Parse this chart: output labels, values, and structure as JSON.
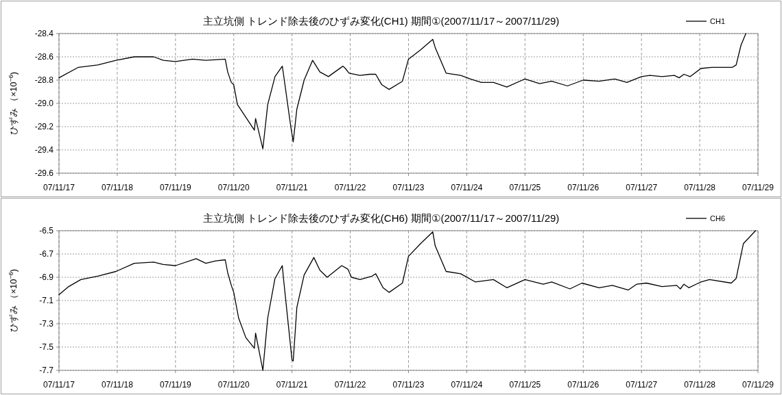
{
  "chart_data": [
    {
      "type": "line",
      "title": "主立坑側  トレンド除去後のひずみ変化(CH1)  期間①(2007/11/17～2007/11/29)",
      "ylabel": "ひずみ （×10$^{−6}$)",
      "legend": "top right",
      "grid": true,
      "xlim": [
        "2007-11-17",
        "2007-11-29"
      ],
      "xticks": [
        {
          "value": "2007-11-17",
          "label": "07/11/17"
        },
        {
          "value": "2007-11-18",
          "label": "07/11/18"
        },
        {
          "value": "2007-11-19",
          "label": "07/11/19"
        },
        {
          "value": "2007-11-20",
          "label": "07/11/20"
        },
        {
          "value": "2007-11-21",
          "label": "07/11/21"
        },
        {
          "value": "2007-11-22",
          "label": "07/11/22"
        },
        {
          "value": "2007-11-23",
          "label": "07/11/23"
        },
        {
          "value": "2007-11-24",
          "label": "07/11/24"
        },
        {
          "value": "2007-11-25",
          "label": "07/11/25"
        },
        {
          "value": "2007-11-26",
          "label": "07/11/26"
        },
        {
          "value": "2007-11-27",
          "label": "07/11/27"
        },
        {
          "value": "2007-11-28",
          "label": "07/11/28"
        },
        {
          "value": "2007-11-29",
          "label": "07/11/29"
        }
      ],
      "ylim": [
        -29.6,
        -28.4
      ],
      "yticks": [
        -29.6,
        -29.4,
        -29.2,
        {
          "value": -29,
          "label": "-29.0"
        },
        -28.8,
        -28.6,
        -28.4
      ],
      "series": [
        {
          "name": "CH1",
          "color": "#000000",
          "x": [
            "2007-11-17T00:00",
            "2007-11-17T08:00",
            "2007-11-17T16:00",
            "2007-11-17T23:30",
            "2007-11-18T07:00",
            "2007-11-18T15:00",
            "2007-11-18T19:00",
            "2007-11-19T00:00",
            "2007-11-19T07:00",
            "2007-11-19T12:30",
            "2007-11-19T20:30",
            "2007-11-19T21:30",
            "2007-11-19T23:00",
            "2007-11-20T00:00",
            "2007-11-20T01:30",
            "2007-11-20T05:00",
            "2007-11-20T08:30",
            "2007-11-20T09:00",
            "2007-11-20T12:00",
            "2007-11-20T14:00",
            "2007-11-20T17:00",
            "2007-11-20T20:00",
            "2007-11-20T20:30",
            "2007-11-20T23:30",
            "2007-11-21T00:30",
            "2007-11-21T02:00",
            "2007-11-21T05:00",
            "2007-11-21T08:30",
            "2007-11-21T11:30",
            "2007-11-21T15:00",
            "2007-11-21T21:00",
            "2007-11-21T22:00",
            "2007-11-21T23:30",
            "2007-11-22T04:00",
            "2007-11-22T08:00",
            "2007-11-22T10:30",
            "2007-11-22T13:00",
            "2007-11-22T16:00",
            "2007-11-22T21:30",
            "2007-11-23T00:00",
            "2007-11-23T05:00",
            "2007-11-23T10:00",
            "2007-11-23T11:00",
            "2007-11-23T15:30",
            "2007-11-23T21:30",
            "2007-11-24T01:30",
            "2007-11-24T06:00",
            "2007-11-24T11:00",
            "2007-11-24T16:30",
            "2007-11-25T00:00",
            "2007-11-25T06:00",
            "2007-11-25T11:00",
            "2007-11-25T17:30",
            "2007-11-26T00:00",
            "2007-11-26T06:30",
            "2007-11-26T13:00",
            "2007-11-26T18:00",
            "2007-11-27T00:00",
            "2007-11-27T03:30",
            "2007-11-27T08:30",
            "2007-11-27T13:30",
            "2007-11-27T15:30",
            "2007-11-27T17:30",
            "2007-11-27T20:00",
            "2007-11-28T00:30",
            "2007-11-28T05:00",
            "2007-11-28T13:30",
            "2007-11-28T15:00",
            "2007-11-28T17:00",
            "2007-11-28T19:00"
          ],
          "values": [
            -28.78,
            -28.69,
            -28.67,
            -28.63,
            -28.6,
            -28.6,
            -28.63,
            -28.64,
            -28.62,
            -28.63,
            -28.62,
            -28.73,
            -28.82,
            -28.84,
            -29.01,
            -29.12,
            -29.23,
            -29.13,
            -29.39,
            -29.01,
            -28.77,
            -28.68,
            -28.75,
            -29.2,
            -29.33,
            -29.05,
            -28.8,
            -28.63,
            -28.73,
            -28.77,
            -28.68,
            -28.7,
            -28.74,
            -28.76,
            -28.75,
            -28.75,
            -28.84,
            -28.88,
            -28.81,
            -28.62,
            -28.54,
            -28.45,
            -28.52,
            -28.74,
            -28.76,
            -28.79,
            -28.82,
            -28.82,
            -28.86,
            -28.79,
            -28.83,
            -28.81,
            -28.85,
            -28.8,
            -28.81,
            -28.79,
            -28.82,
            -28.77,
            -28.76,
            -28.77,
            -28.76,
            -28.78,
            -28.75,
            -28.77,
            -28.7,
            -28.69,
            -28.69,
            -28.67,
            -28.5,
            -28.4
          ]
        }
      ]
    },
    {
      "type": "line",
      "title": "主立坑側  トレンド除去後のひずみ変化(CH6)  期間①(2007/11/17～2007/11/29)",
      "ylabel": "ひずみ （×10$^{−6}$)",
      "legend": "top right",
      "grid": true,
      "xlim": [
        "2007-11-17",
        "2007-11-29"
      ],
      "xticks": [
        {
          "value": "2007-11-17",
          "label": "07/11/17"
        },
        {
          "value": "2007-11-18",
          "label": "07/11/18"
        },
        {
          "value": "2007-11-19",
          "label": "07/11/19"
        },
        {
          "value": "2007-11-20",
          "label": "07/11/20"
        },
        {
          "value": "2007-11-21",
          "label": "07/11/21"
        },
        {
          "value": "2007-11-22",
          "label": "07/11/22"
        },
        {
          "value": "2007-11-23",
          "label": "07/11/23"
        },
        {
          "value": "2007-11-24",
          "label": "07/11/24"
        },
        {
          "value": "2007-11-25",
          "label": "07/11/25"
        },
        {
          "value": "2007-11-26",
          "label": "07/11/26"
        },
        {
          "value": "2007-11-27",
          "label": "07/11/27"
        },
        {
          "value": "2007-11-28",
          "label": "07/11/28"
        },
        {
          "value": "2007-11-29",
          "label": "07/11/29"
        }
      ],
      "ylim": [
        -7.7,
        -6.5
      ],
      "yticks": [
        -7.7,
        -7.5,
        -7.3,
        -7.1,
        -6.9,
        -6.7,
        -6.5
      ],
      "series": [
        {
          "name": "CH6",
          "color": "#000000",
          "x": [
            "2007-11-17T00:00",
            "2007-11-17T04:00",
            "2007-11-17T09:00",
            "2007-11-17T16:00",
            "2007-11-17T23:30",
            "2007-11-18T07:00",
            "2007-11-18T15:00",
            "2007-11-18T19:00",
            "2007-11-19T00:00",
            "2007-11-19T08:30",
            "2007-11-19T12:30",
            "2007-11-19T16:30",
            "2007-11-19T20:30",
            "2007-11-19T21:30",
            "2007-11-19T23:00",
            "2007-11-20T00:00",
            "2007-11-20T02:00",
            "2007-11-20T05:00",
            "2007-11-20T08:30",
            "2007-11-20T09:00",
            "2007-11-20T12:00",
            "2007-11-20T14:00",
            "2007-11-20T17:00",
            "2007-11-20T20:00",
            "2007-11-20T20:30",
            "2007-11-21T00:00",
            "2007-11-21T00:30",
            "2007-11-21T02:00",
            "2007-11-21T05:00",
            "2007-11-21T09:00",
            "2007-11-21T11:30",
            "2007-11-21T14:30",
            "2007-11-21T20:30",
            "2007-11-21T23:00",
            "2007-11-22T00:30",
            "2007-11-22T04:00",
            "2007-11-22T09:00",
            "2007-11-22T10:30",
            "2007-11-22T13:30",
            "2007-11-22T16:00",
            "2007-11-22T21:30",
            "2007-11-23T00:00",
            "2007-11-23T05:00",
            "2007-11-23T10:00",
            "2007-11-23T11:00",
            "2007-11-23T15:30",
            "2007-11-23T21:30",
            "2007-11-24T03:30",
            "2007-11-24T11:00",
            "2007-11-24T16:30",
            "2007-11-25T00:00",
            "2007-11-25T07:30",
            "2007-11-25T11:00",
            "2007-11-25T18:30",
            "2007-11-25T23:30",
            "2007-11-26T06:30",
            "2007-11-26T12:00",
            "2007-11-26T18:30",
            "2007-11-26T22:00",
            "2007-11-27T02:00",
            "2007-11-27T08:30",
            "2007-11-27T14:30",
            "2007-11-27T16:00",
            "2007-11-27T17:30",
            "2007-11-27T19:30",
            "2007-11-28T00:30",
            "2007-11-28T04:00",
            "2007-11-28T13:00",
            "2007-11-28T15:00",
            "2007-11-28T18:00",
            "2007-11-28T23:00"
          ],
          "values": [
            -7.05,
            -6.98,
            -6.92,
            -6.89,
            -6.85,
            -6.78,
            -6.77,
            -6.79,
            -6.8,
            -6.74,
            -6.78,
            -6.76,
            -6.75,
            -6.86,
            -6.97,
            -7.03,
            -7.25,
            -7.42,
            -7.51,
            -7.38,
            -7.7,
            -7.25,
            -6.91,
            -6.8,
            -6.91,
            -7.61,
            -7.62,
            -7.16,
            -6.88,
            -6.73,
            -6.84,
            -6.9,
            -6.8,
            -6.83,
            -6.9,
            -6.92,
            -6.89,
            -6.87,
            -6.99,
            -7.03,
            -6.95,
            -6.72,
            -6.61,
            -6.51,
            -6.63,
            -6.85,
            -6.87,
            -6.94,
            -6.92,
            -6.99,
            -6.92,
            -6.96,
            -6.94,
            -7.0,
            -6.95,
            -6.99,
            -6.97,
            -7.01,
            -6.96,
            -6.95,
            -6.98,
            -6.97,
            -7.0,
            -6.96,
            -6.99,
            -6.94,
            -6.92,
            -6.95,
            -6.91,
            -6.61,
            -6.5
          ]
        }
      ]
    }
  ]
}
